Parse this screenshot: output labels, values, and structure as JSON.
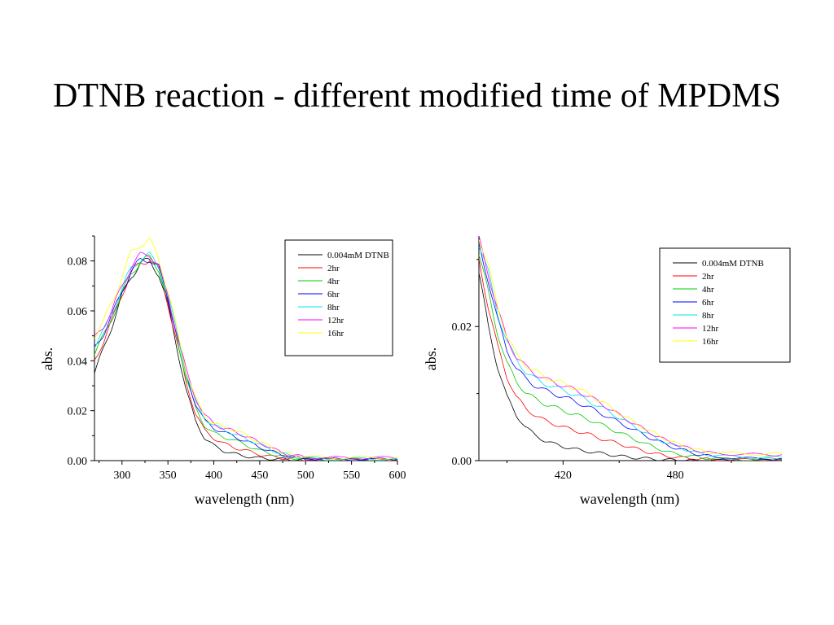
{
  "slide": {
    "title": "DTNB reaction - different modified time of MPDMS"
  },
  "chart_data": [
    {
      "type": "line",
      "xlabel": "wavelength (nm)",
      "ylabel": "abs.",
      "xlim": [
        270,
        600
      ],
      "ylim": [
        0,
        0.09
      ],
      "x_ticks": [
        300,
        350,
        400,
        450,
        500,
        550,
        600
      ],
      "y_ticks": [
        0.0,
        0.02,
        0.04,
        0.06,
        0.08
      ],
      "legend_position": "top-right",
      "grid": false,
      "x": [
        270,
        280,
        290,
        300,
        310,
        320,
        330,
        340,
        350,
        360,
        370,
        380,
        390,
        400,
        410,
        420,
        430,
        440,
        450,
        460,
        470,
        480,
        490,
        500,
        520,
        540,
        560,
        580,
        600
      ],
      "series": [
        {
          "name": "0.004mM DTNB",
          "color": "#000000",
          "values": [
            0.035,
            0.045,
            0.055,
            0.066,
            0.074,
            0.079,
            0.08,
            0.075,
            0.062,
            0.045,
            0.028,
            0.016,
            0.009,
            0.006,
            0.004,
            0.003,
            0.002,
            0.0015,
            0.001,
            0.0008,
            0.0006,
            0.0005,
            0.0004,
            0.0003,
            0.0003,
            0.0002,
            0.0002,
            0.0002,
            0.0002
          ]
        },
        {
          "name": "2hr",
          "color": "#ff0000",
          "values": [
            0.04,
            0.048,
            0.057,
            0.067,
            0.075,
            0.079,
            0.081,
            0.076,
            0.063,
            0.047,
            0.031,
            0.019,
            0.012,
            0.009,
            0.007,
            0.0055,
            0.0045,
            0.0035,
            0.0025,
            0.0018,
            0.0012,
            0.0008,
            0.0006,
            0.0005,
            0.0004,
            0.0003,
            0.0003,
            0.0003,
            0.0003
          ]
        },
        {
          "name": "4hr",
          "color": "#00cc00",
          "values": [
            0.043,
            0.05,
            0.058,
            0.067,
            0.075,
            0.08,
            0.081,
            0.077,
            0.064,
            0.049,
            0.033,
            0.021,
            0.014,
            0.011,
            0.0095,
            0.0085,
            0.007,
            0.0055,
            0.004,
            0.003,
            0.002,
            0.0013,
            0.0009,
            0.0007,
            0.0005,
            0.0004,
            0.0004,
            0.0004,
            0.0004
          ]
        },
        {
          "name": "6hr",
          "color": "#0000ff",
          "values": [
            0.045,
            0.051,
            0.059,
            0.068,
            0.076,
            0.08,
            0.081,
            0.077,
            0.065,
            0.05,
            0.034,
            0.023,
            0.016,
            0.013,
            0.0115,
            0.01,
            0.0085,
            0.007,
            0.0055,
            0.004,
            0.0028,
            0.0018,
            0.0012,
            0.0009,
            0.0006,
            0.0005,
            0.0005,
            0.0005,
            0.0005
          ]
        },
        {
          "name": "8hr",
          "color": "#00e5e5",
          "values": [
            0.046,
            0.052,
            0.06,
            0.069,
            0.077,
            0.081,
            0.082,
            0.078,
            0.066,
            0.051,
            0.035,
            0.024,
            0.017,
            0.014,
            0.0125,
            0.011,
            0.0095,
            0.008,
            0.0065,
            0.0048,
            0.0033,
            0.0022,
            0.0015,
            0.0011,
            0.0008,
            0.0007,
            0.0007,
            0.0007,
            0.0007
          ]
        },
        {
          "name": "12hr",
          "color": "#ff00ff",
          "values": [
            0.049,
            0.054,
            0.061,
            0.07,
            0.078,
            0.082,
            0.083,
            0.078,
            0.066,
            0.051,
            0.036,
            0.025,
            0.018,
            0.015,
            0.013,
            0.012,
            0.0105,
            0.009,
            0.0072,
            0.0055,
            0.0038,
            0.0026,
            0.0019,
            0.0015,
            0.0012,
            0.0011,
            0.0011,
            0.0011,
            0.0011
          ]
        },
        {
          "name": "16hr",
          "color": "#ffff00",
          "values": [
            0.05,
            0.056,
            0.064,
            0.074,
            0.083,
            0.087,
            0.088,
            0.081,
            0.068,
            0.052,
            0.036,
            0.025,
            0.018,
            0.015,
            0.0135,
            0.0125,
            0.011,
            0.0092,
            0.0075,
            0.0058,
            0.004,
            0.0028,
            0.002,
            0.0016,
            0.0013,
            0.0012,
            0.0012,
            0.0012,
            0.0012
          ]
        }
      ]
    },
    {
      "type": "line",
      "xlabel": "wavelength (nm)",
      "ylabel": "abs.",
      "xlim": [
        375,
        537
      ],
      "ylim": [
        0,
        0.0335
      ],
      "x_ticks": [
        420,
        480
      ],
      "y_ticks": [
        0.0,
        0.02
      ],
      "legend_position": "top-right",
      "grid": false,
      "x": [
        375,
        380,
        385,
        390,
        395,
        400,
        405,
        410,
        415,
        420,
        425,
        430,
        435,
        440,
        445,
        450,
        455,
        460,
        465,
        470,
        475,
        480,
        485,
        490,
        495,
        500,
        510,
        520,
        530,
        537
      ],
      "series": [
        {
          "name": "0.004mM DTNB",
          "color": "#000000",
          "values": [
            0.028,
            0.02,
            0.014,
            0.0095,
            0.0068,
            0.005,
            0.0038,
            0.003,
            0.0025,
            0.0021,
            0.0018,
            0.0015,
            0.0013,
            0.0011,
            0.0009,
            0.0007,
            0.0005,
            0.0004,
            0.0003,
            0.0002,
            0.0001,
            0.0001,
            0.0001,
            0.0,
            0.0,
            0.0,
            0.0,
            0.0,
            0.0,
            0.0
          ]
        },
        {
          "name": "2hr",
          "color": "#ff0000",
          "values": [
            0.03,
            0.023,
            0.017,
            0.0125,
            0.0095,
            0.0078,
            0.0068,
            0.006,
            0.0055,
            0.005,
            0.0046,
            0.0042,
            0.0038,
            0.0033,
            0.0029,
            0.0025,
            0.0021,
            0.0017,
            0.0013,
            0.001,
            0.0007,
            0.0005,
            0.0004,
            0.0003,
            0.0002,
            0.0002,
            0.0001,
            0.0001,
            0.0001,
            0.0001
          ]
        },
        {
          "name": "4hr",
          "color": "#00cc00",
          "values": [
            0.031,
            0.025,
            0.019,
            0.0145,
            0.0118,
            0.0102,
            0.0092,
            0.0085,
            0.008,
            0.0075,
            0.007,
            0.0065,
            0.006,
            0.0054,
            0.0048,
            0.0042,
            0.0036,
            0.003,
            0.0024,
            0.0019,
            0.0014,
            0.001,
            0.0008,
            0.0006,
            0.0004,
            0.0003,
            0.0002,
            0.0002,
            0.0002,
            0.0002
          ]
        },
        {
          "name": "6hr",
          "color": "#0000ff",
          "values": [
            0.032,
            0.027,
            0.021,
            0.0165,
            0.0138,
            0.0122,
            0.0112,
            0.0105,
            0.01,
            0.0095,
            0.009,
            0.0084,
            0.0078,
            0.0071,
            0.0064,
            0.0057,
            0.005,
            0.0043,
            0.0036,
            0.003,
            0.0024,
            0.0019,
            0.0015,
            0.0011,
            0.0008,
            0.0006,
            0.0004,
            0.0003,
            0.0003,
            0.0003
          ]
        },
        {
          "name": "8hr",
          "color": "#00e5e5",
          "values": [
            0.0325,
            0.028,
            0.022,
            0.0178,
            0.015,
            0.0133,
            0.0122,
            0.0115,
            0.011,
            0.0105,
            0.01,
            0.0094,
            0.0087,
            0.008,
            0.0072,
            0.0064,
            0.0056,
            0.0048,
            0.004,
            0.0033,
            0.0027,
            0.0022,
            0.0017,
            0.0013,
            0.001,
            0.0008,
            0.0006,
            0.0005,
            0.0005,
            0.0005
          ]
        },
        {
          "name": "12hr",
          "color": "#ff00ff",
          "values": [
            0.033,
            0.028,
            0.0225,
            0.0182,
            0.0155,
            0.014,
            0.013,
            0.0122,
            0.0117,
            0.0112,
            0.0107,
            0.0101,
            0.0094,
            0.0086,
            0.0077,
            0.0068,
            0.006,
            0.0052,
            0.0044,
            0.0037,
            0.003,
            0.0025,
            0.002,
            0.0016,
            0.0013,
            0.0011,
            0.001,
            0.0009,
            0.0009,
            0.0009
          ]
        },
        {
          "name": "16hr",
          "color": "#ffff00",
          "values": [
            0.0335,
            0.029,
            0.023,
            0.0185,
            0.0158,
            0.0143,
            0.0133,
            0.0126,
            0.012,
            0.0115,
            0.011,
            0.0104,
            0.0097,
            0.0089,
            0.008,
            0.0071,
            0.0062,
            0.0054,
            0.0046,
            0.0039,
            0.0032,
            0.0026,
            0.0021,
            0.0017,
            0.0014,
            0.0012,
            0.0011,
            0.001,
            0.001,
            0.001
          ]
        }
      ]
    }
  ]
}
